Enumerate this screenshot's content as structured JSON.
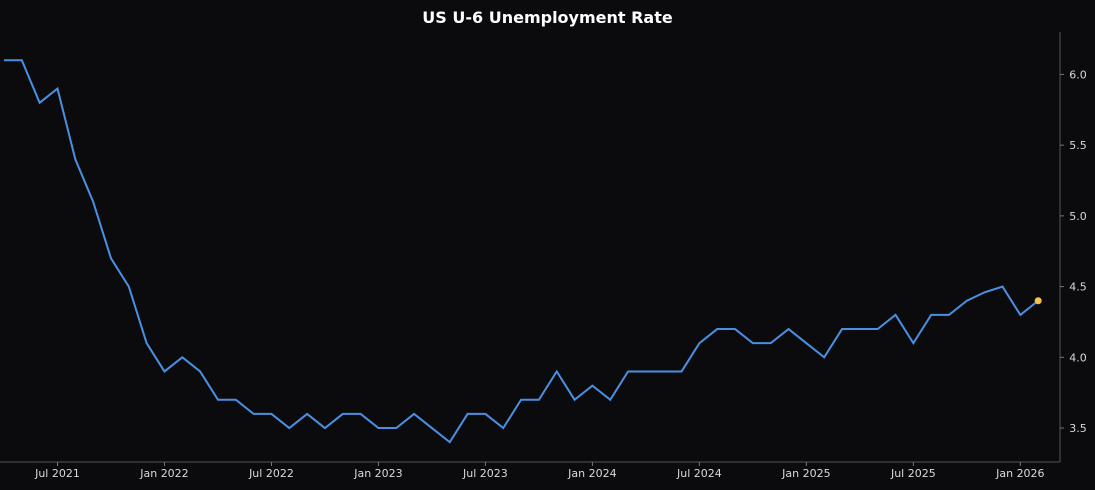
{
  "chart_data": {
    "type": "line",
    "title": "US U-6 Unemployment Rate",
    "xlabel": "",
    "ylabel": "",
    "grid": false,
    "line_color": "#4a90e2",
    "marker_color": "#f5c34b",
    "background": "#0b0b0e",
    "xlim": [
      "2021-04",
      "2026-03"
    ],
    "ylim": [
      3.26,
      6.3
    ],
    "y_ticks": [
      3.5,
      4.0,
      4.5,
      5.0,
      5.5,
      6.0
    ],
    "y_tick_labels": [
      "3.5",
      "4.0",
      "4.5",
      "5.0",
      "5.5",
      "6.0"
    ],
    "x_ticks": [
      "2021-07",
      "2022-01",
      "2022-07",
      "2023-01",
      "2023-07",
      "2024-01",
      "2024-07",
      "2025-01",
      "2025-07",
      "2026-01"
    ],
    "x_tick_labels": [
      "Jul 2021",
      "Jan 2022",
      "Jul 2022",
      "Jan 2023",
      "Jul 2023",
      "Jan 2024",
      "Jul 2024",
      "Jan 2025",
      "Jul 2025",
      "Jan 2026"
    ],
    "series": [
      {
        "x": [
          "2021-04",
          "2021-05",
          "2021-06",
          "2021-07",
          "2021-08",
          "2021-09",
          "2021-10",
          "2021-11",
          "2021-12",
          "2022-01",
          "2022-02",
          "2022-03",
          "2022-04",
          "2022-05",
          "2022-06",
          "2022-07",
          "2022-08",
          "2022-09",
          "2022-10",
          "2022-11",
          "2022-12",
          "2023-01",
          "2023-02",
          "2023-03",
          "2023-04",
          "2023-05",
          "2023-06",
          "2023-07",
          "2023-08",
          "2023-09",
          "2023-10",
          "2023-11",
          "2023-12",
          "2024-01",
          "2024-02",
          "2024-03",
          "2024-04",
          "2024-05",
          "2024-06",
          "2024-07",
          "2024-08",
          "2024-09",
          "2024-10",
          "2024-11",
          "2024-12",
          "2025-01",
          "2025-02",
          "2025-03",
          "2025-04",
          "2025-05",
          "2025-06",
          "2025-07",
          "2025-08",
          "2025-09",
          "2025-10",
          "2025-11",
          "2025-12",
          "2026-01",
          "2026-02"
        ],
        "values": [
          6.1,
          6.1,
          5.8,
          5.9,
          5.4,
          5.1,
          4.7,
          4.5,
          4.1,
          3.9,
          4.0,
          3.9,
          3.7,
          3.7,
          3.6,
          3.6,
          3.5,
          3.6,
          3.5,
          3.6,
          3.6,
          3.5,
          3.5,
          3.6,
          3.5,
          3.4,
          3.6,
          3.6,
          3.5,
          3.7,
          3.7,
          3.9,
          3.7,
          3.8,
          3.7,
          3.9,
          3.9,
          3.9,
          3.9,
          4.1,
          4.2,
          4.2,
          4.1,
          4.1,
          4.2,
          4.1,
          4.0,
          4.2,
          4.2,
          4.2,
          4.3,
          4.1,
          4.3,
          4.3,
          4.4,
          4.46,
          4.5,
          4.3,
          4.4
        ]
      }
    ]
  }
}
